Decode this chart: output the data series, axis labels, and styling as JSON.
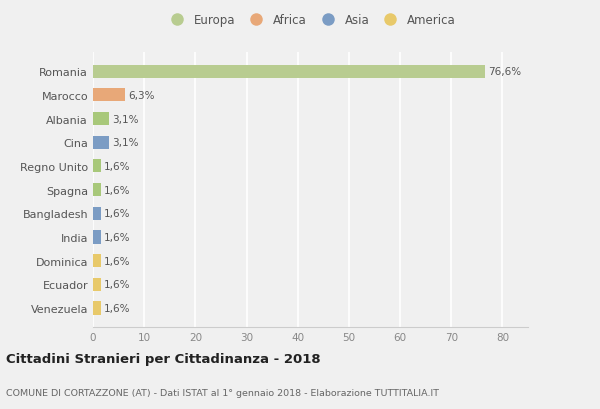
{
  "categories": [
    "Venezuela",
    "Ecuador",
    "Dominica",
    "India",
    "Bangladesh",
    "Spagna",
    "Regno Unito",
    "Cina",
    "Albania",
    "Marocco",
    "Romania"
  ],
  "values": [
    1.6,
    1.6,
    1.6,
    1.6,
    1.6,
    1.6,
    1.6,
    3.1,
    3.1,
    6.3,
    76.6
  ],
  "labels": [
    "1,6%",
    "1,6%",
    "1,6%",
    "1,6%",
    "1,6%",
    "1,6%",
    "1,6%",
    "3,1%",
    "3,1%",
    "6,3%",
    "76,6%"
  ],
  "colors": [
    "#e8c96a",
    "#e8c96a",
    "#e8c96a",
    "#7b9cc4",
    "#7b9cc4",
    "#a8c87a",
    "#a8c87a",
    "#7b9cc4",
    "#a8c87a",
    "#e8a878",
    "#b8cc90"
  ],
  "legend_labels": [
    "Europa",
    "Africa",
    "Asia",
    "America"
  ],
  "legend_colors": [
    "#b8cc90",
    "#e8a878",
    "#7b9cc4",
    "#e8c96a"
  ],
  "title": "Cittadini Stranieri per Cittadinanza - 2018",
  "subtitle": "COMUNE DI CORTAZZONE (AT) - Dati ISTAT al 1° gennaio 2018 - Elaborazione TUTTITALIA.IT",
  "xlim": [
    0,
    85
  ],
  "xticks": [
    0,
    10,
    20,
    30,
    40,
    50,
    60,
    70,
    80
  ],
  "background_color": "#f0f0f0",
  "plot_bg_color": "#f0f0f0",
  "grid_color": "#ffffff",
  "bar_height": 0.55
}
